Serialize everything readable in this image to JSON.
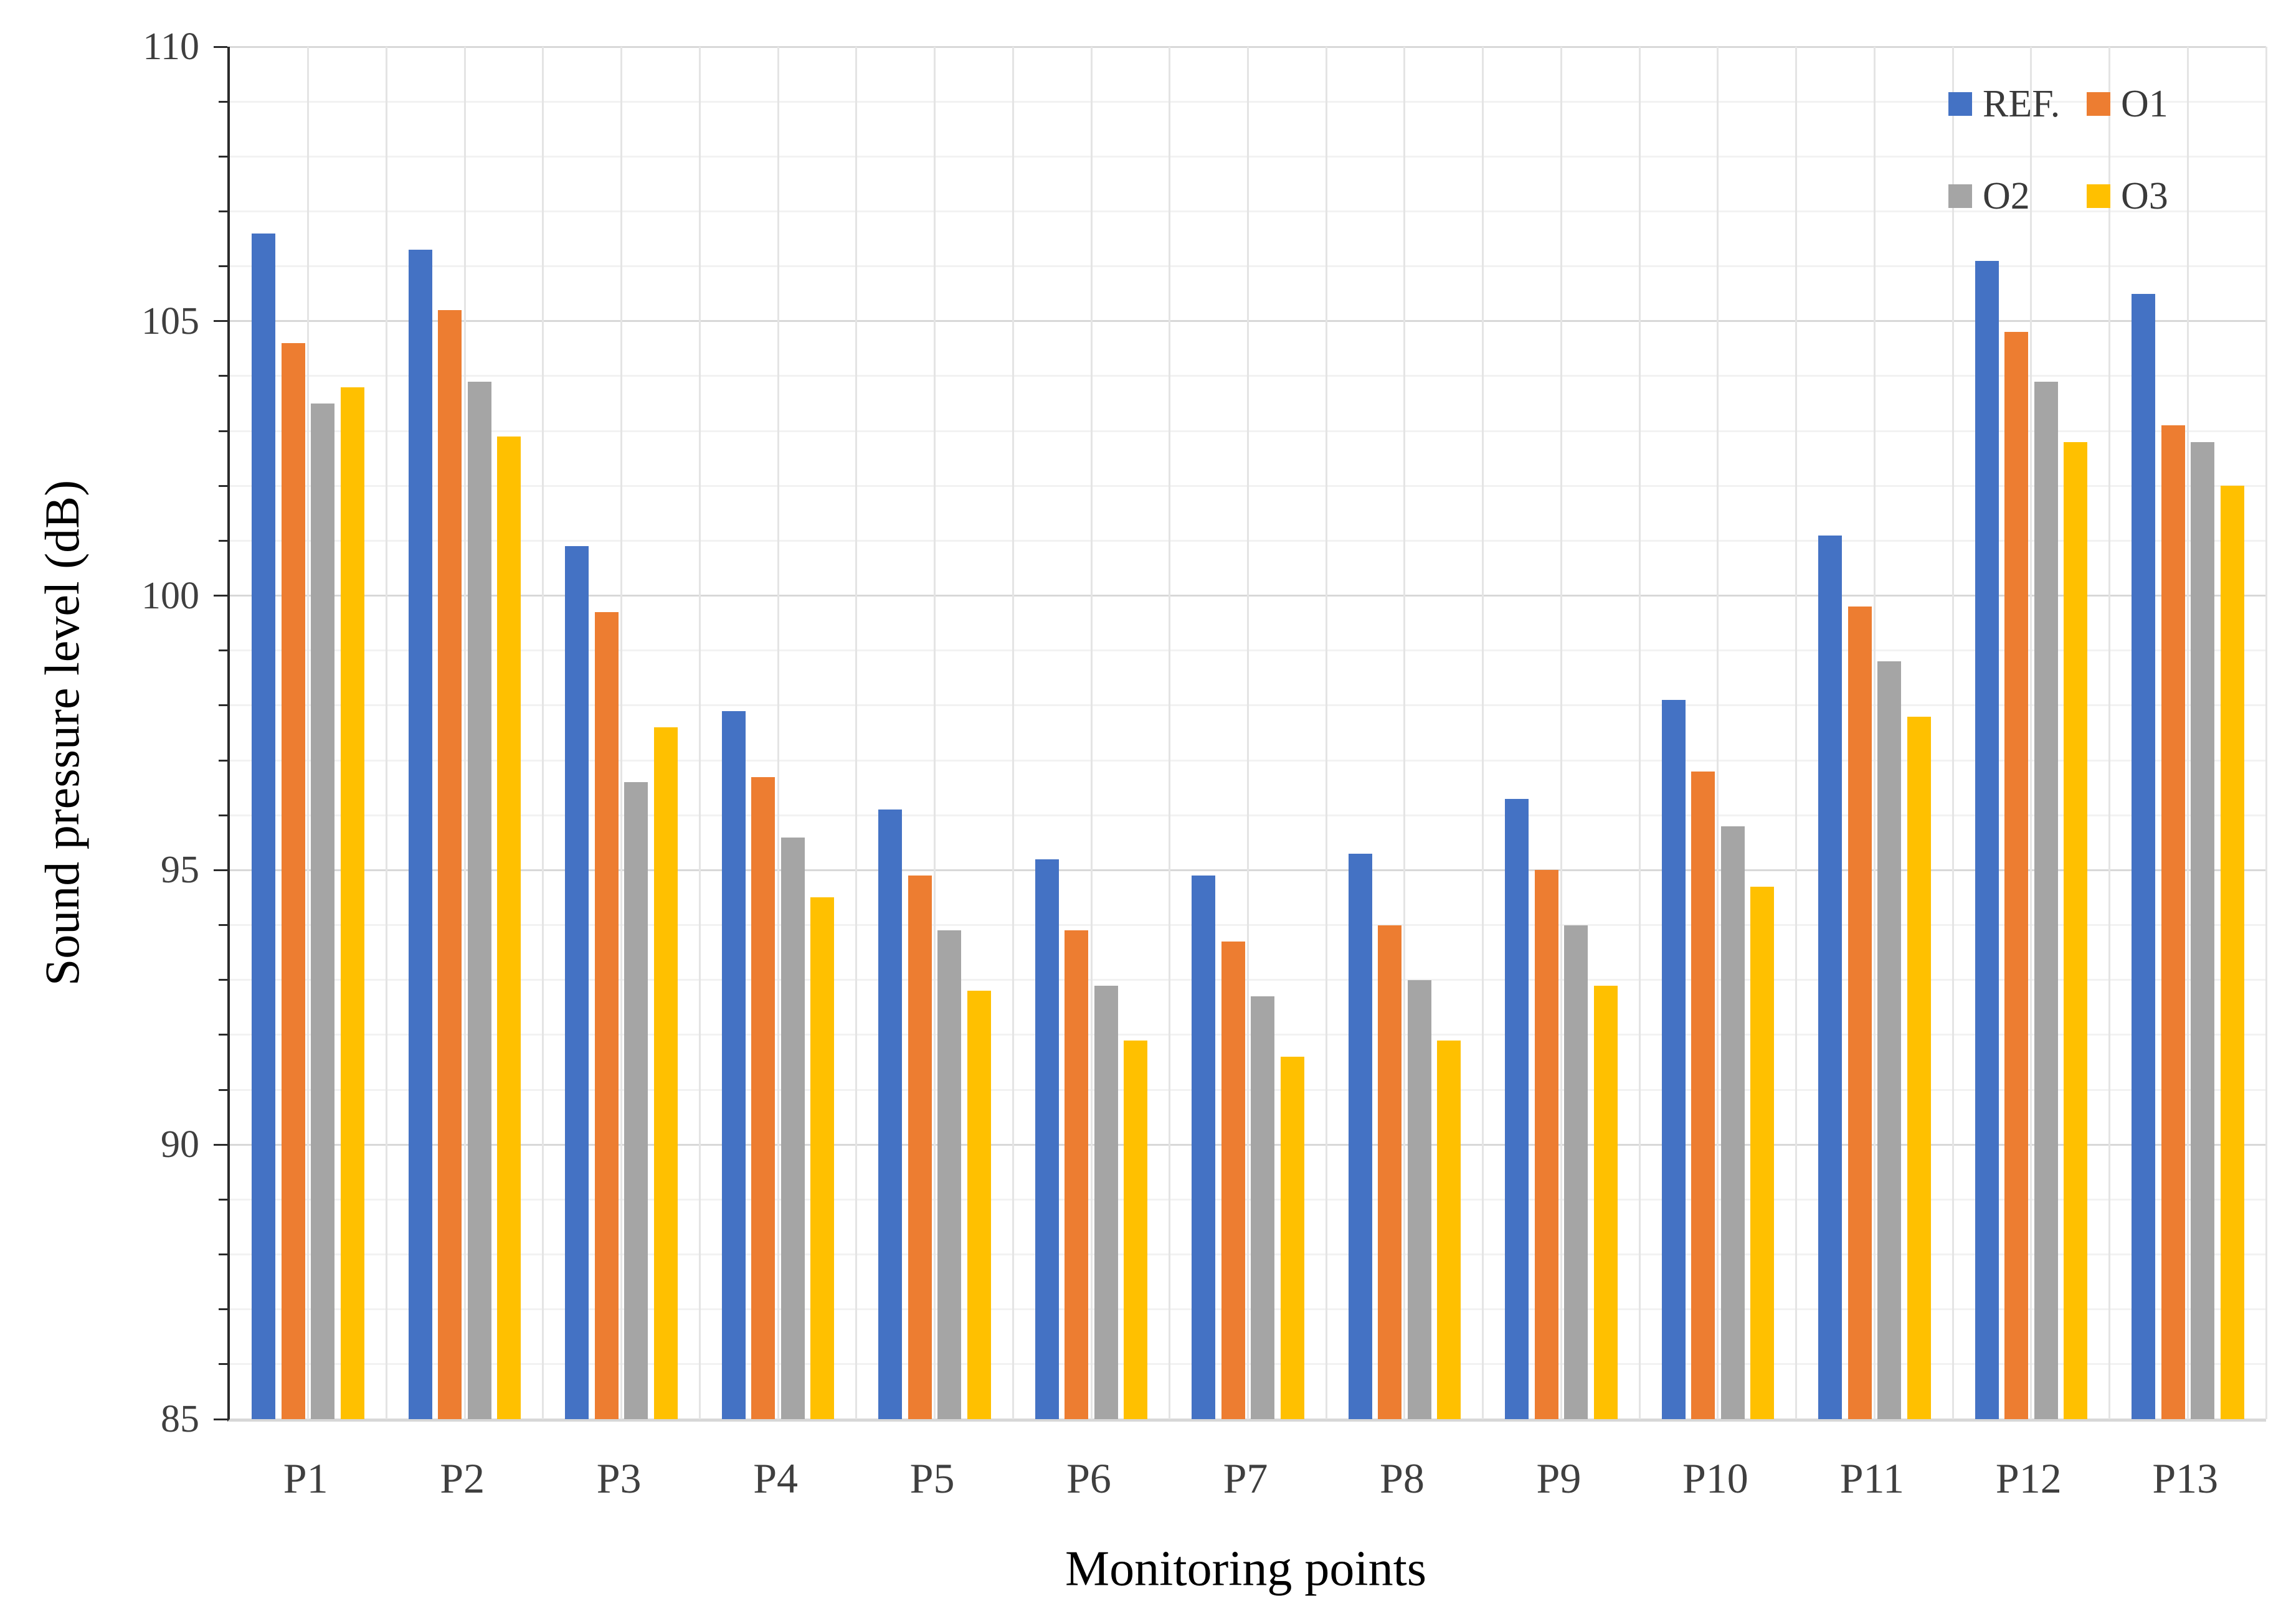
{
  "chart_data": {
    "type": "bar",
    "title": "",
    "xlabel": "Monitoring points",
    "ylabel": "Sound pressure level (dB)",
    "categories": [
      "P1",
      "P2",
      "P3",
      "P4",
      "P5",
      "P6",
      "P7",
      "P8",
      "P9",
      "P10",
      "P11",
      "P12",
      "P13"
    ],
    "series": [
      {
        "name": "REF.",
        "color": "#4472C4",
        "values": [
          106.6,
          106.3,
          100.9,
          97.9,
          96.1,
          95.2,
          94.9,
          95.3,
          96.3,
          98.1,
          101.1,
          106.1,
          105.5
        ]
      },
      {
        "name": "O1",
        "color": "#ED7D31",
        "values": [
          104.6,
          105.2,
          99.7,
          96.7,
          94.9,
          93.9,
          93.7,
          94.0,
          95.0,
          96.8,
          99.8,
          104.8,
          103.1
        ]
      },
      {
        "name": "O2",
        "color": "#A5A5A5",
        "values": [
          103.5,
          103.9,
          96.6,
          95.6,
          93.9,
          92.9,
          92.7,
          93.0,
          94.0,
          95.8,
          98.8,
          103.9,
          102.8
        ]
      },
      {
        "name": "O3",
        "color": "#FFC000",
        "values": [
          103.8,
          102.9,
          97.6,
          94.5,
          92.8,
          91.9,
          91.6,
          91.9,
          92.9,
          94.7,
          97.8,
          102.8,
          102.0
        ]
      }
    ],
    "ylim": [
      85,
      110
    ],
    "y_major_step": 5,
    "y_minor_step": 1,
    "y_tick_labels": [
      "85",
      "90",
      "95",
      "100",
      "105",
      "110"
    ],
    "grid": {
      "horizontal_minor": true,
      "horizontal_major": true,
      "vertical": "two-per-category"
    },
    "legend_position": "top-right-inside",
    "legend_rows": [
      [
        "REF.",
        "O1"
      ],
      [
        "O2",
        "O3"
      ]
    ]
  }
}
